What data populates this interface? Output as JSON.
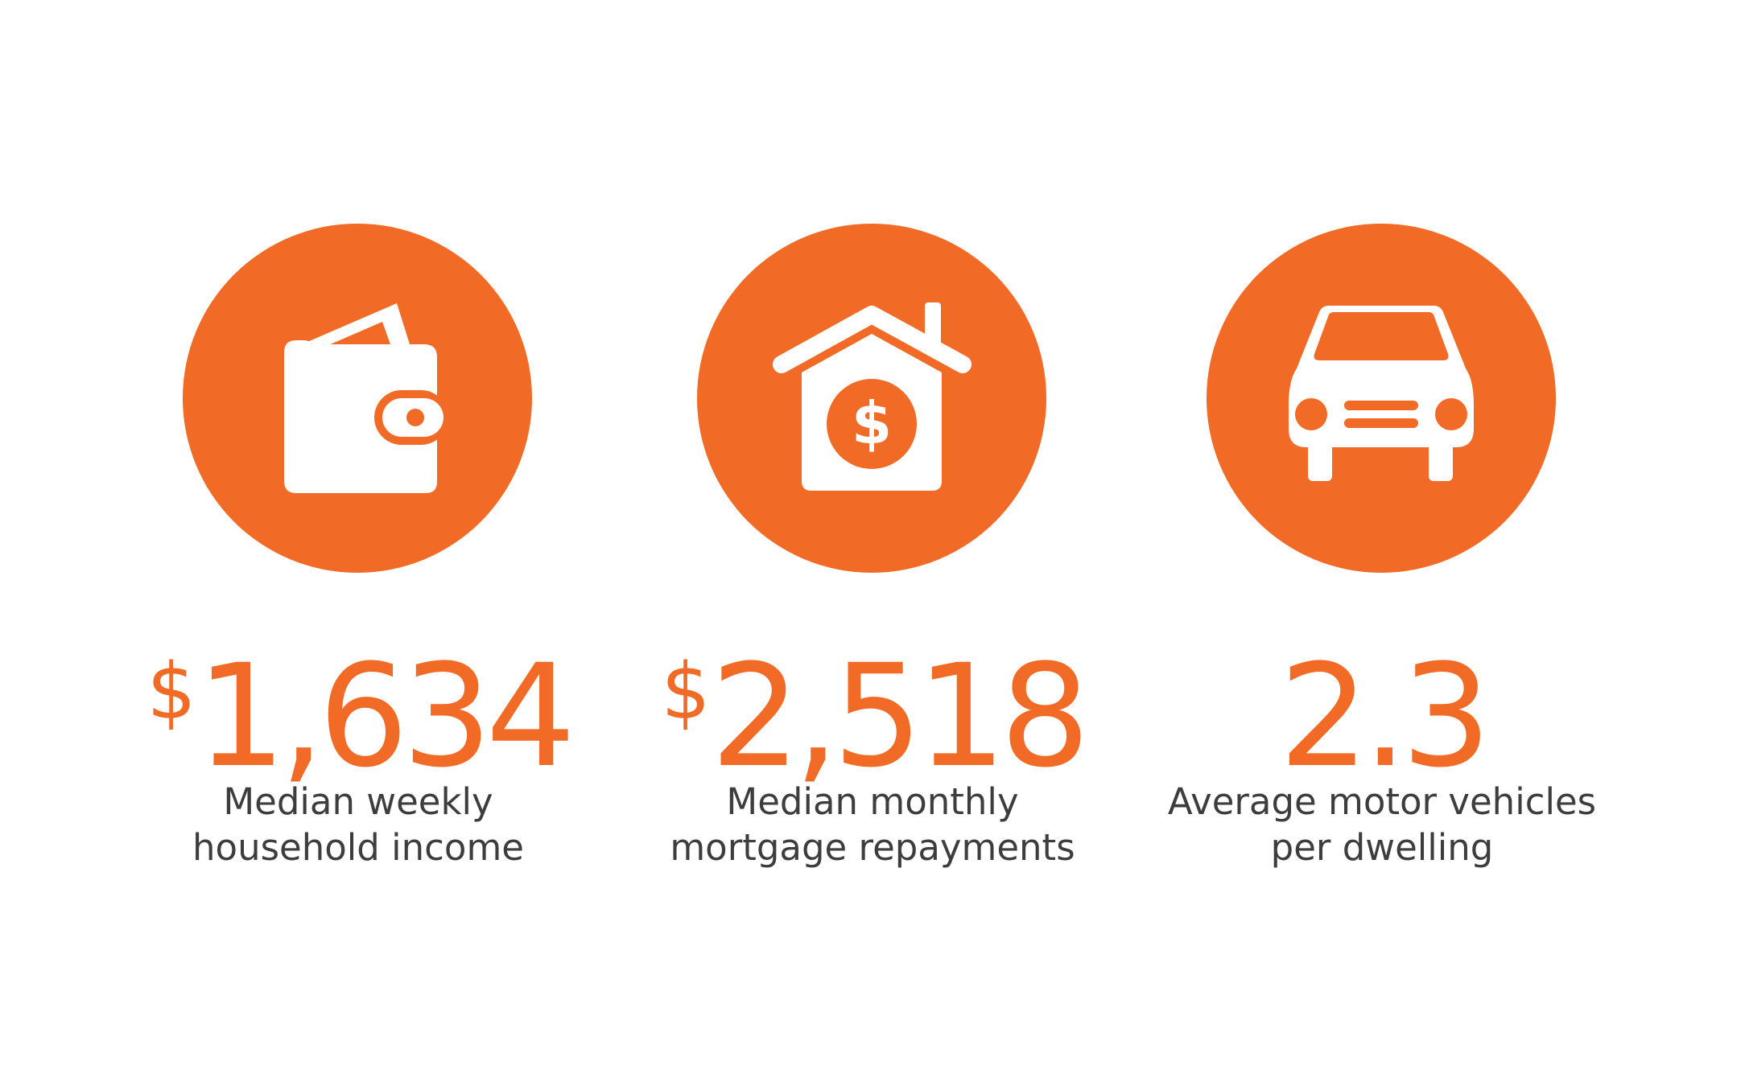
{
  "colors": {
    "accent": "#f26b26",
    "text": "#3d3d3d",
    "background": "#ffffff"
  },
  "stats": [
    {
      "icon": "wallet-icon",
      "currency": "$",
      "value": "1,634",
      "label_line1": "Median weekly",
      "label_line2": "household income"
    },
    {
      "icon": "house-dollar-icon",
      "currency": "$",
      "value": "2,518",
      "label_line1": "Median monthly",
      "label_line2": "mortgage repayments"
    },
    {
      "icon": "car-icon",
      "currency": "",
      "value": "2.3",
      "label_line1": "Average motor vehicles",
      "label_line2": "per dwelling"
    }
  ]
}
